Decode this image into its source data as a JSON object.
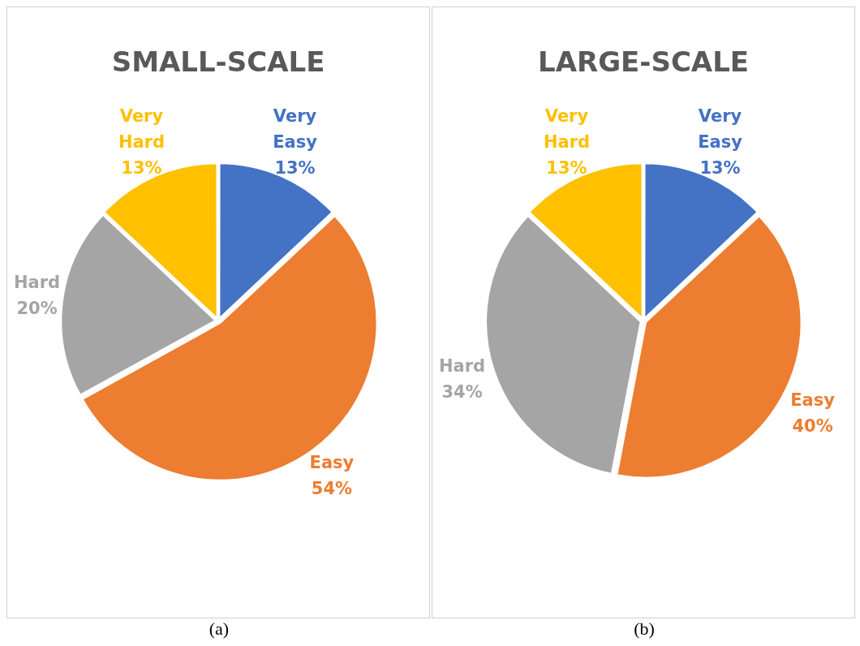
{
  "chart_data": [
    {
      "type": "pie",
      "title": "SMALL-SCALE",
      "categories": [
        "Very Easy",
        "Easy",
        "Hard",
        "Very Hard"
      ],
      "values": [
        13,
        54,
        20,
        13
      ],
      "value_labels": [
        "13%",
        "54%",
        "20%",
        "13%"
      ],
      "colors": [
        "#4472c4",
        "#ed7d31",
        "#a5a5a5",
        "#ffc000"
      ],
      "legend": false,
      "annotations": [
        "(a)"
      ]
    },
    {
      "type": "pie",
      "title": "LARGE-SCALE",
      "categories": [
        "Very Easy",
        "Easy",
        "Hard",
        "Very Hard"
      ],
      "values": [
        13,
        40,
        34,
        13
      ],
      "value_labels": [
        "13%",
        "40%",
        "34%",
        "13%"
      ],
      "colors": [
        "#4472c4",
        "#ed7d31",
        "#a5a5a5",
        "#ffc000"
      ],
      "legend": false,
      "annotations": [
        "(b)"
      ]
    }
  ]
}
